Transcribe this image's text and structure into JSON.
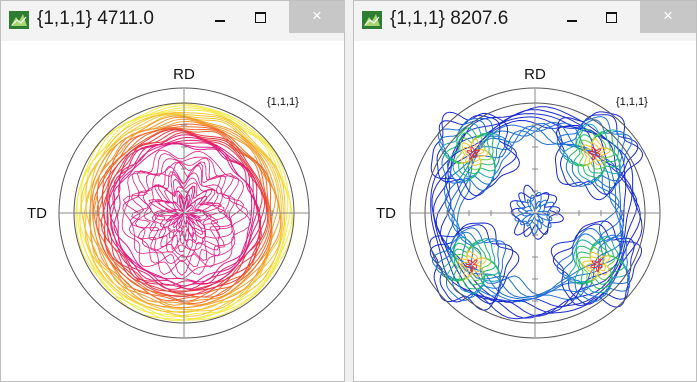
{
  "windows": [
    {
      "title": "{1,1,1} 4711.0",
      "close_glyph": "×",
      "plot": {
        "top_label": "RD",
        "left_label": "TD",
        "plane_label": "{1,1,1}"
      }
    },
    {
      "title": "{1,1,1} 8207.6",
      "close_glyph": "×",
      "plot": {
        "top_label": "RD",
        "left_label": "TD",
        "plane_label": "{1,1,1}"
      }
    }
  ],
  "icons": {
    "app": "pole-figure-app-icon",
    "minimize": "minimize-icon",
    "maximize": "maximize-icon",
    "close": "close-icon"
  },
  "colors": {
    "contour_left": [
      "#f5e94a",
      "#f5c534",
      "#f39a2e",
      "#ef6a2c",
      "#ea3b45",
      "#e3206e",
      "#dd1c8c"
    ],
    "contour_right": [
      "#1a2bd0",
      "#1f6fd4",
      "#19a6b4",
      "#1fb86c",
      "#5fcf3a",
      "#f0c62a",
      "#ee2a24"
    ]
  }
}
